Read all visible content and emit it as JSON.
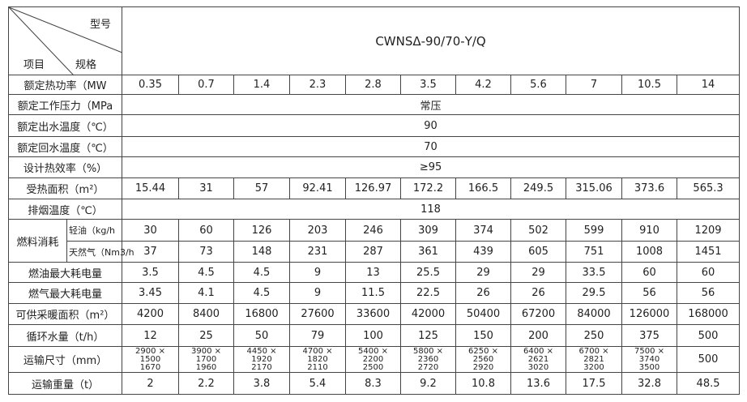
{
  "header": {
    "corner": {
      "top": "型号",
      "middle": "规格",
      "bottom": "项目"
    },
    "model": "CWNSΔ-90/70-Y/Q"
  },
  "rows": [
    {
      "label": "额定热功率（MW",
      "values": [
        "0.35",
        "0.7",
        "1.4",
        "2.3",
        "2.8",
        "3.5",
        "4.2",
        "5.6",
        "7",
        "10.5",
        "14"
      ]
    },
    {
      "label": "额定工作压力（MPa",
      "value": "常压"
    },
    {
      "label": "额定出水温度（℃）",
      "value": "90"
    },
    {
      "label": "额定回水温度（℃）",
      "value": "70"
    },
    {
      "label": "设计热效率（%）",
      "value": "≥95"
    },
    {
      "label": "受热面积（m²）",
      "values": [
        "15.44",
        "31",
        "57",
        "92.41",
        "126.97",
        "172.2",
        "166.5",
        "249.5",
        "315.06",
        "373.6",
        "565.3"
      ]
    },
    {
      "label": "排烟温度（℃）",
      "value": "118"
    },
    {
      "label": "燃料消耗",
      "rows": [
        {
          "label": "轻油（kg/h",
          "values": [
            "30",
            "60",
            "126",
            "203",
            "246",
            "309",
            "374",
            "502",
            "599",
            "910",
            "1209"
          ]
        },
        {
          "label": "天然气（Nm3/h",
          "values": [
            "37",
            "73",
            "148",
            "231",
            "287",
            "361",
            "439",
            "605",
            "751",
            "1008",
            "1451"
          ]
        }
      ]
    },
    {
      "label": "燃油最大耗电量",
      "values": [
        "3.5",
        "4.5",
        "4.5",
        "9",
        "13",
        "25.5",
        "29",
        "29",
        "33.5",
        "60",
        "60"
      ]
    },
    {
      "label": "燃气最大耗电量",
      "values": [
        "3.45",
        "4.1",
        "4.5",
        "9",
        "11.5",
        "22.5",
        "26",
        "26",
        "29.5",
        "56",
        "56"
      ]
    },
    {
      "label": "可供采暖面积（m²）",
      "values": [
        "4200",
        "8400",
        "16800",
        "27600",
        "33600",
        "42000",
        "50400",
        "67200",
        "84000",
        "126000",
        "168000"
      ]
    },
    {
      "label": "循环水量（t/h）",
      "values": [
        "12",
        "25",
        "50",
        "79",
        "100",
        "125",
        "150",
        "200",
        "250",
        "375",
        "500"
      ]
    },
    {
      "label": "运输尺寸（mm）",
      "values": [
        [
          "2900 ×",
          "1500",
          "1670"
        ],
        [
          "3900 ×",
          "1700",
          "1960"
        ],
        [
          "4450 ×",
          "1920",
          "2170"
        ],
        [
          "4700 ×",
          "1820",
          "2110"
        ],
        [
          "5400 ×",
          "2200",
          "2500"
        ],
        [
          "5800 ×",
          "2360",
          "2720"
        ],
        [
          "6250 ×",
          "2560",
          "2920"
        ],
        [
          "6400 ×",
          "2621",
          "3020"
        ],
        [
          "6700 ×",
          "2821",
          "3200"
        ],
        [
          "7500 ×",
          "3740",
          "3500"
        ],
        "500"
      ]
    },
    {
      "label": "运输重量（t）",
      "values": [
        "2",
        "2.2",
        "3.8",
        "5.4",
        "8.3",
        "9.2",
        "10.8",
        "13.6",
        "17.5",
        "32.8",
        "48.5"
      ]
    }
  ]
}
